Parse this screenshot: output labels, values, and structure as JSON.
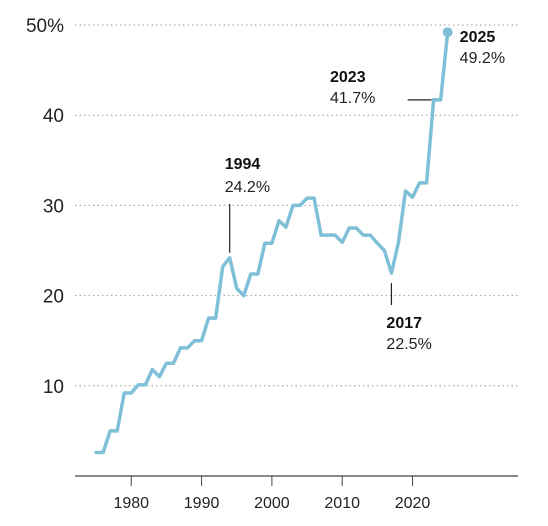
{
  "chart_data": {
    "type": "line",
    "title": "",
    "xlabel": "",
    "ylabel": "",
    "xlim": [
      1972,
      2035
    ],
    "ylim": [
      0,
      50
    ],
    "x_ticks": [
      1980,
      1990,
      2000,
      2010,
      2020
    ],
    "x_tick_labels": [
      "1980",
      "1990",
      "2000",
      "2010",
      "2020"
    ],
    "y_ticks": [
      10,
      20,
      30,
      40,
      50
    ],
    "y_tick_labels": [
      "10",
      "20",
      "30",
      "40",
      "50%"
    ],
    "grid": "horizontal-dotted",
    "colors": {
      "line": "#7fc0d8",
      "grid": "#999999",
      "axis": "#444444",
      "annotation_leader": "#222222"
    },
    "series": [
      {
        "points": [
          [
            1975,
            2.6
          ],
          [
            1976,
            2.6
          ],
          [
            1977,
            5.0
          ],
          [
            1978,
            5.0
          ],
          [
            1979,
            9.2
          ],
          [
            1980,
            9.2
          ],
          [
            1981,
            10.1
          ],
          [
            1982,
            10.1
          ],
          [
            1983,
            11.8
          ],
          [
            1984,
            11.0
          ],
          [
            1985,
            12.5
          ],
          [
            1986,
            12.5
          ],
          [
            1987,
            14.2
          ],
          [
            1988,
            14.2
          ],
          [
            1989,
            15.0
          ],
          [
            1990,
            15.0
          ],
          [
            1991,
            17.5
          ],
          [
            1992,
            17.5
          ],
          [
            1993,
            23.2
          ],
          [
            1994,
            24.2
          ],
          [
            1995,
            20.8
          ],
          [
            1996,
            20.0
          ],
          [
            1997,
            22.4
          ],
          [
            1998,
            22.4
          ],
          [
            1999,
            25.8
          ],
          [
            2000,
            25.8
          ],
          [
            2001,
            28.3
          ],
          [
            2002,
            27.6
          ],
          [
            2003,
            30.0
          ],
          [
            2004,
            30.0
          ],
          [
            2005,
            30.8
          ],
          [
            2006,
            30.8
          ],
          [
            2007,
            26.7
          ],
          [
            2008,
            26.7
          ],
          [
            2009,
            26.7
          ],
          [
            2010,
            25.9
          ],
          [
            2011,
            27.5
          ],
          [
            2012,
            27.5
          ],
          [
            2013,
            26.7
          ],
          [
            2014,
            26.7
          ],
          [
            2015,
            25.8
          ],
          [
            2016,
            25.0
          ],
          [
            2017,
            22.5
          ],
          [
            2018,
            25.9
          ],
          [
            2019,
            31.6
          ],
          [
            2020,
            30.9
          ],
          [
            2021,
            32.5
          ],
          [
            2022,
            32.5
          ],
          [
            2023,
            41.7
          ],
          [
            2024,
            41.7
          ],
          [
            2025,
            49.2
          ]
        ]
      }
    ],
    "annotations": [
      {
        "year_label": "1994",
        "value_label": "24.2%",
        "x": 1994,
        "y": 24.2,
        "position": "above"
      },
      {
        "year_label": "2017",
        "value_label": "22.5%",
        "x": 2017,
        "y": 22.5,
        "position": "below"
      },
      {
        "year_label": "2023",
        "value_label": "41.7%",
        "x": 2023,
        "y": 41.7,
        "position": "left"
      },
      {
        "year_label": "2025",
        "value_label": "49.2%",
        "x": 2025,
        "y": 49.2,
        "position": "right"
      }
    ]
  }
}
